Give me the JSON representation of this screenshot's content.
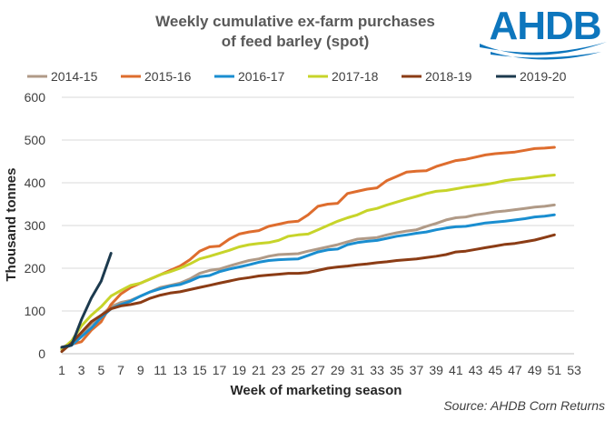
{
  "logo": {
    "text": "AHDB",
    "color": "#0d76bd"
  },
  "source": "Source: AHDB Corn Returns",
  "chart_data": {
    "type": "line",
    "title": [
      "Weekly cumulative ex-farm purchases",
      "of feed barley (spot)"
    ],
    "xlabel": "Week of marketing season",
    "ylabel": "Thousand tonnes",
    "xlim": [
      1,
      53
    ],
    "ylim": [
      0,
      600
    ],
    "xticks": [
      1,
      3,
      5,
      7,
      9,
      11,
      13,
      15,
      17,
      19,
      21,
      23,
      25,
      27,
      29,
      31,
      33,
      35,
      37,
      39,
      41,
      43,
      45,
      47,
      49,
      51,
      53
    ],
    "yticks": [
      0,
      100,
      200,
      300,
      400,
      500,
      600
    ],
    "legend_position": "top",
    "series": [
      {
        "name": "2014-15",
        "color": "#b09a87",
        "x_start": 1,
        "values": [
          10,
          25,
          45,
          70,
          90,
          110,
          120,
          125,
          135,
          145,
          155,
          160,
          165,
          175,
          188,
          195,
          198,
          205,
          212,
          218,
          222,
          228,
          232,
          233,
          234,
          240,
          245,
          250,
          255,
          262,
          268,
          270,
          272,
          278,
          283,
          287,
          290,
          298,
          305,
          313,
          318,
          320,
          325,
          328,
          332,
          334,
          337,
          340,
          343,
          345,
          348
        ]
      },
      {
        "name": "2015-16",
        "color": "#de6d2e",
        "x_start": 1,
        "values": [
          15,
          22,
          28,
          55,
          75,
          115,
          140,
          155,
          165,
          175,
          185,
          195,
          205,
          220,
          240,
          250,
          252,
          268,
          280,
          285,
          288,
          298,
          303,
          308,
          310,
          325,
          345,
          350,
          352,
          375,
          380,
          385,
          388,
          405,
          415,
          425,
          427,
          428,
          438,
          445,
          452,
          455,
          460,
          465,
          468,
          470,
          472,
          476,
          480,
          481,
          483
        ]
      },
      {
        "name": "2016-17",
        "color": "#1a8ed0",
        "x_start": 1,
        "values": [
          12,
          20,
          40,
          60,
          85,
          105,
          115,
          123,
          135,
          145,
          152,
          158,
          162,
          170,
          180,
          183,
          192,
          198,
          203,
          208,
          214,
          218,
          220,
          221,
          222,
          230,
          238,
          243,
          245,
          255,
          260,
          263,
          265,
          270,
          275,
          278,
          282,
          285,
          290,
          294,
          297,
          298,
          302,
          306,
          308,
          310,
          313,
          316,
          320,
          322,
          325
        ]
      },
      {
        "name": "2017-18",
        "color": "#c7d42a",
        "x_start": 1,
        "values": [
          10,
          30,
          65,
          90,
          110,
          135,
          148,
          160,
          165,
          175,
          185,
          192,
          200,
          210,
          222,
          228,
          235,
          242,
          250,
          255,
          258,
          260,
          265,
          275,
          278,
          280,
          290,
          300,
          310,
          318,
          325,
          335,
          340,
          348,
          355,
          362,
          368,
          375,
          380,
          382,
          386,
          390,
          393,
          396,
          400,
          405,
          408,
          410,
          413,
          416,
          418
        ]
      },
      {
        "name": "2018-19",
        "color": "#8b3c15",
        "x_start": 1,
        "values": [
          5,
          25,
          50,
          75,
          90,
          105,
          112,
          115,
          120,
          130,
          137,
          142,
          145,
          150,
          155,
          160,
          165,
          170,
          175,
          178,
          182,
          184,
          186,
          188,
          188,
          190,
          195,
          200,
          203,
          205,
          208,
          210,
          213,
          215,
          218,
          220,
          222,
          225,
          228,
          232,
          238,
          240,
          244,
          248,
          252,
          256,
          258,
          262,
          266,
          272,
          278
        ]
      },
      {
        "name": "2019-20",
        "color": "#1c3a4e",
        "x_start": 1,
        "values": [
          15,
          20,
          80,
          130,
          170,
          235
        ]
      }
    ]
  }
}
